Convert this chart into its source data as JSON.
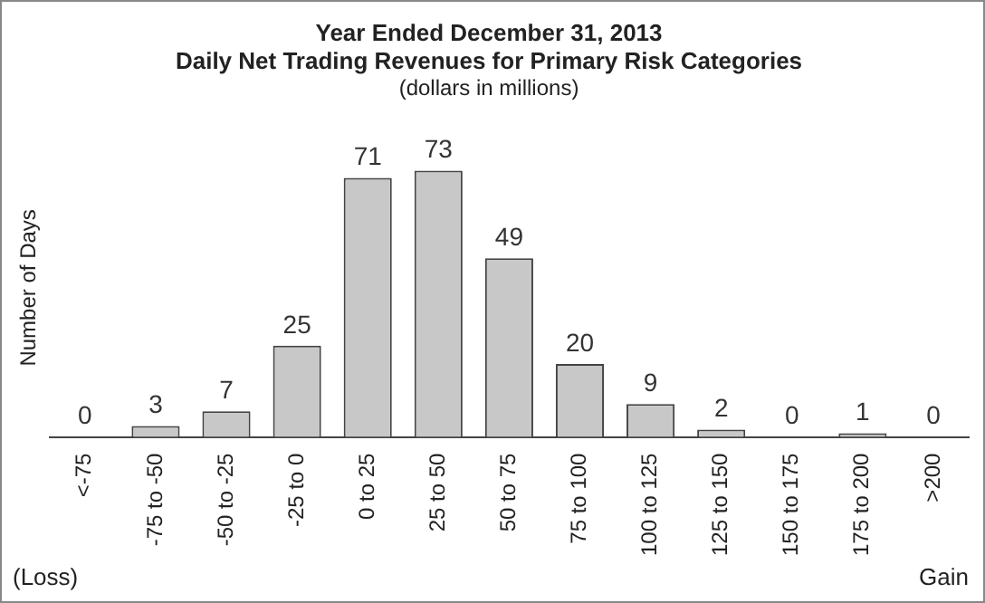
{
  "chart_data": {
    "type": "bar",
    "title": "Year Ended December 31, 2013\nDaily Net Trading Revenues for Primary Risk Categories",
    "subtitle": "(dollars in millions)",
    "ylabel": "Number of Days",
    "categories": [
      "<-75",
      "-75 to -50",
      "-50 to -25",
      "-25 to 0",
      "0 to 25",
      "25 to 50",
      "50 to 75",
      "75 to 100",
      "100 to 125",
      "125 to 150",
      "150 to 175",
      "175 to 200",
      ">200"
    ],
    "values": [
      0,
      3,
      7,
      25,
      71,
      73,
      49,
      20,
      9,
      2,
      0,
      1,
      0
    ],
    "color": "#c8c8c8",
    "data_labels": true,
    "tick_labels": "x",
    "grid": false,
    "legend": false,
    "annotations": [
      "(Loss)",
      "Gain"
    ]
  }
}
